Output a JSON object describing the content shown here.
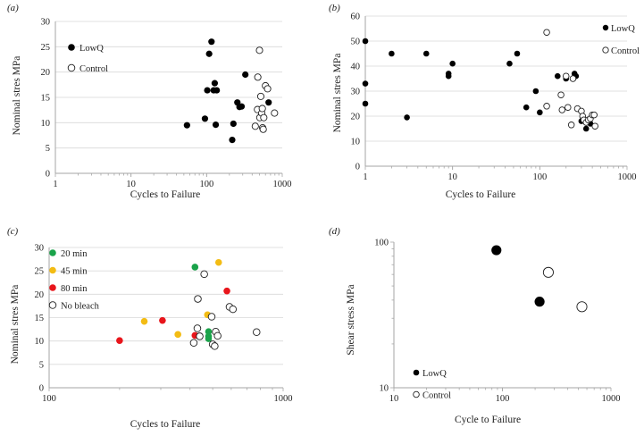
{
  "colors": {
    "axis": "#a6a6a6",
    "grid": "#d9d9d9",
    "point": "#000000",
    "green": "#1aa34a",
    "yellow": "#f3bc14",
    "red": "#e8151b"
  },
  "chart_data": [
    {
      "id": "a",
      "letter": "(a)",
      "type": "scatter",
      "xlabel": "Cycles to Failure",
      "ylabel": "Nominal stres MPa",
      "xscale": "log",
      "xlim": [
        1,
        1000
      ],
      "ylim": [
        0,
        30
      ],
      "xticks": [
        1,
        10,
        100,
        1000
      ],
      "xtick_labels": [
        "1",
        "10",
        "100",
        "1000"
      ],
      "yticks": [
        0,
        5,
        10,
        15,
        20,
        25,
        30
      ],
      "ytick_labels": [
        "0",
        "5",
        "10",
        "15",
        "20",
        "25",
        "30"
      ],
      "grid": "horizontal",
      "legend_position": "top-left",
      "series": [
        {
          "name": "LowQ",
          "style": "filled",
          "color": "#000000",
          "points": [
            [
              55,
              9.5
            ],
            [
              95,
              10.8
            ],
            [
              102,
              16.4
            ],
            [
              108,
              23.6
            ],
            [
              116,
              26.0
            ],
            [
              124,
              16.4
            ],
            [
              128,
              17.8
            ],
            [
              132,
              9.6
            ],
            [
              136,
              16.4
            ],
            [
              218,
              6.6
            ],
            [
              226,
              9.8
            ],
            [
              255,
              14.0
            ],
            [
              272,
              13.1
            ],
            [
              290,
              13.2
            ],
            [
              325,
              19.5
            ],
            [
              660,
              14.0
            ]
          ]
        },
        {
          "name": "Control",
          "style": "open",
          "color": "#000000",
          "points": [
            [
              440,
              9.3
            ],
            [
              470,
              12.6
            ],
            [
              475,
              19.0
            ],
            [
              500,
              24.3
            ],
            [
              505,
              11.0
            ],
            [
              520,
              15.2
            ],
            [
              535,
              11.9
            ],
            [
              545,
              12.8
            ],
            [
              550,
              9.0
            ],
            [
              560,
              8.7
            ],
            [
              570,
              11.0
            ],
            [
              600,
              17.3
            ],
            [
              640,
              16.7
            ],
            [
              790,
              11.9
            ]
          ]
        }
      ]
    },
    {
      "id": "b",
      "letter": "(b)",
      "type": "scatter",
      "xlabel": "Cycles to Failure",
      "ylabel": "Nominal stres MPa",
      "xscale": "log",
      "xlim": [
        1,
        1000
      ],
      "ylim": [
        0,
        60
      ],
      "xticks": [
        1,
        10,
        100,
        1000
      ],
      "xtick_labels": [
        "1",
        "10",
        "100",
        "1000"
      ],
      "yticks": [
        0,
        10,
        20,
        30,
        40,
        50,
        60
      ],
      "ytick_labels": [
        "0",
        "10",
        "20",
        "30",
        "40",
        "50",
        "60"
      ],
      "grid": "horizontal",
      "legend_position": "top-right",
      "series": [
        {
          "name": "LowQ",
          "style": "filled",
          "color": "#000000",
          "points": [
            [
              1,
              50
            ],
            [
              1,
              33
            ],
            [
              1,
              25
            ],
            [
              2,
              45
            ],
            [
              3,
              19.5
            ],
            [
              5,
              45
            ],
            [
              9,
              37
            ],
            [
              9,
              36
            ],
            [
              10,
              41
            ],
            [
              45,
              41
            ],
            [
              55,
              45
            ],
            [
              70,
              23.5
            ],
            [
              90,
              30
            ],
            [
              100,
              21.5
            ],
            [
              160,
              36
            ],
            [
              200,
              35
            ],
            [
              250,
              37
            ],
            [
              260,
              36
            ],
            [
              300,
              18
            ],
            [
              340,
              15
            ],
            [
              380,
              17
            ]
          ]
        },
        {
          "name": "Control",
          "style": "open",
          "color": "#000000",
          "points": [
            [
              120,
              53.5
            ],
            [
              120,
              24
            ],
            [
              175,
              28.5
            ],
            [
              180,
              22.5
            ],
            [
              200,
              36
            ],
            [
              210,
              23.5
            ],
            [
              230,
              16.5
            ],
            [
              240,
              35
            ],
            [
              270,
              23
            ],
            [
              300,
              22
            ],
            [
              310,
              20
            ],
            [
              320,
              18.5
            ],
            [
              340,
              17.5
            ],
            [
              360,
              18.5
            ],
            [
              380,
              19
            ],
            [
              400,
              20.5
            ],
            [
              420,
              20.5
            ],
            [
              430,
              16
            ]
          ]
        }
      ]
    },
    {
      "id": "c",
      "letter": "(c)",
      "type": "scatter",
      "xlabel": "Cycles to Failure",
      "ylabel": "Nominal stres MPa",
      "xscale": "log",
      "xlim": [
        100,
        1000
      ],
      "ylim": [
        0,
        30
      ],
      "xticks": [
        100,
        1000
      ],
      "xtick_labels": [
        "100",
        "1000"
      ],
      "yticks": [
        0,
        5,
        10,
        15,
        20,
        25,
        30
      ],
      "ytick_labels": [
        "0",
        "5",
        "10",
        "15",
        "20",
        "25",
        "30"
      ],
      "grid": "horizontal",
      "legend_position": "top-left",
      "series": [
        {
          "name": "20 min",
          "style": "filled",
          "color": "#1aa34a",
          "points": [
            [
              420,
              25.8
            ],
            [
              480,
              12.0
            ],
            [
              480,
              11.0
            ],
            [
              480,
              10.5
            ]
          ]
        },
        {
          "name": "45 min",
          "style": "filled",
          "color": "#f3bc14",
          "points": [
            [
              255,
              14.2
            ],
            [
              355,
              11.4
            ],
            [
              475,
              15.6
            ],
            [
              530,
              26.8
            ]
          ]
        },
        {
          "name": "80 min",
          "style": "filled",
          "color": "#e8151b",
          "points": [
            [
              200,
              10.1
            ],
            [
              305,
              14.4
            ],
            [
              420,
              11.2
            ],
            [
              575,
              20.7
            ]
          ]
        },
        {
          "name": "No bleach",
          "style": "open",
          "color": "#000000",
          "points": [
            [
              415,
              9.6
            ],
            [
              430,
              12.7
            ],
            [
              432,
              19.0
            ],
            [
              440,
              11.0
            ],
            [
              460,
              24.3
            ],
            [
              495,
              15.2
            ],
            [
              500,
              9.3
            ],
            [
              510,
              8.9
            ],
            [
              515,
              12.0
            ],
            [
              525,
              11.1
            ],
            [
              590,
              17.3
            ],
            [
              610,
              16.8
            ],
            [
              770,
              11.9
            ]
          ]
        }
      ]
    },
    {
      "id": "d",
      "letter": "(d)",
      "type": "scatter",
      "xlabel": "Cycle to Failure",
      "ylabel": "Shear stress MPa",
      "xscale": "log",
      "yscale": "log",
      "xlim": [
        10,
        1000
      ],
      "ylim": [
        10,
        100
      ],
      "xticks": [
        10,
        100,
        1000
      ],
      "xtick_labels": [
        "10",
        "100",
        "1000"
      ],
      "yticks": [
        10,
        100
      ],
      "ytick_labels": [
        "10",
        "100"
      ],
      "grid": "none",
      "legend_position": "bottom-left",
      "series": [
        {
          "name": "LowQ",
          "style": "filled",
          "color": "#000000",
          "points": [
            [
              88,
              88
            ],
            [
              220,
              39
            ]
          ]
        },
        {
          "name": "Control",
          "style": "open",
          "color": "#000000",
          "points": [
            [
              265,
              62
            ],
            [
              540,
              36
            ]
          ]
        }
      ]
    }
  ]
}
